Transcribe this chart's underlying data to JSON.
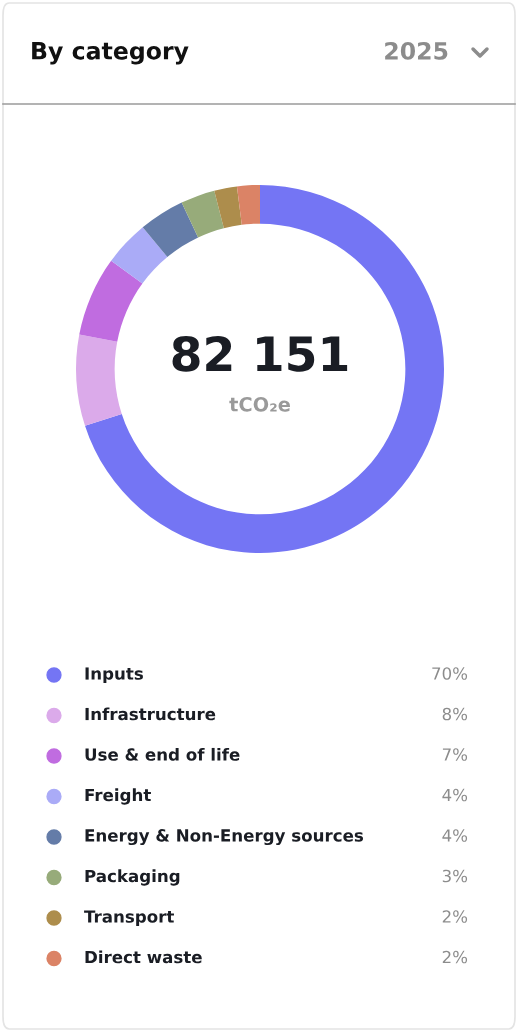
{
  "chart_data": {
    "type": "donut",
    "title": "By category",
    "annotations": [
      "2025",
      "82 151",
      "tCO₂e"
    ],
    "categories": [
      "Inputs",
      "Infrastructure",
      "Use & end of life",
      "Freight",
      "Energy & Non-Energy sources",
      "Packaging",
      "Transport",
      "Direct waste"
    ],
    "values": [
      70,
      8,
      7,
      4,
      4,
      3,
      2,
      2
    ],
    "value_labels": [
      "70%",
      "8%",
      "7%",
      "4%",
      "4%",
      "3%",
      "2%",
      "2%"
    ],
    "colors": [
      "#7475f4",
      "#dbaaea",
      "#c06ce0",
      "#aaabf7",
      "#647ca8",
      "#97ab7a",
      "#ad8d4c",
      "#db8366"
    ],
    "legend": "bottom"
  }
}
